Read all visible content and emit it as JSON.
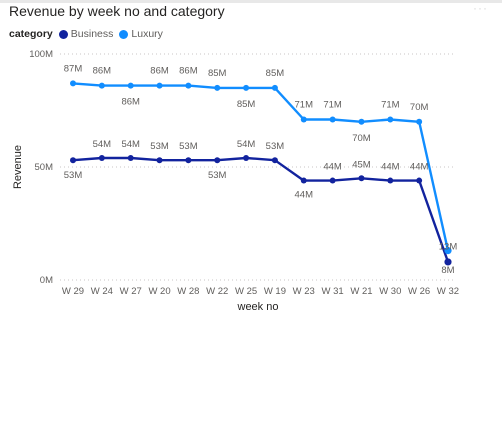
{
  "chart_data": {
    "type": "line",
    "title": "Revenue by week no and category",
    "legend_title": "category",
    "legend_position": "top-left",
    "xlabel": "week no",
    "ylabel": "Revenue",
    "categories": [
      "W 29",
      "W 24",
      "W 27",
      "W 20",
      "W 28",
      "W 22",
      "W 25",
      "W 19",
      "W 23",
      "W 31",
      "W 21",
      "W 30",
      "W 26",
      "W 32"
    ],
    "ylim": [
      0,
      100
    ],
    "y_ticks": [
      0,
      50,
      100
    ],
    "y_tick_labels": [
      "0M",
      "50M",
      "100M"
    ],
    "grid": true,
    "series": [
      {
        "name": "Business",
        "color": "#12239e",
        "values": [
          53,
          54,
          54,
          53,
          53,
          53,
          54,
          53,
          44,
          44,
          45,
          44,
          44,
          8
        ],
        "labels": [
          "53M",
          "54M",
          "54M",
          "53M",
          "53M",
          "53M",
          "54M",
          "53M",
          "44M",
          "44M",
          "45M",
          "44M",
          "44M",
          "8M"
        ]
      },
      {
        "name": "Luxury",
        "color": "#118dff",
        "values": [
          87,
          86,
          86,
          86,
          86,
          85,
          85,
          85,
          71,
          71,
          70,
          71,
          70,
          13
        ],
        "labels": [
          "87M",
          "86M",
          "86M",
          "86M",
          "86M",
          "85M",
          "85M",
          "85M",
          "71M",
          "71M",
          "70M",
          "71M",
          "70M",
          "13M"
        ]
      }
    ]
  }
}
